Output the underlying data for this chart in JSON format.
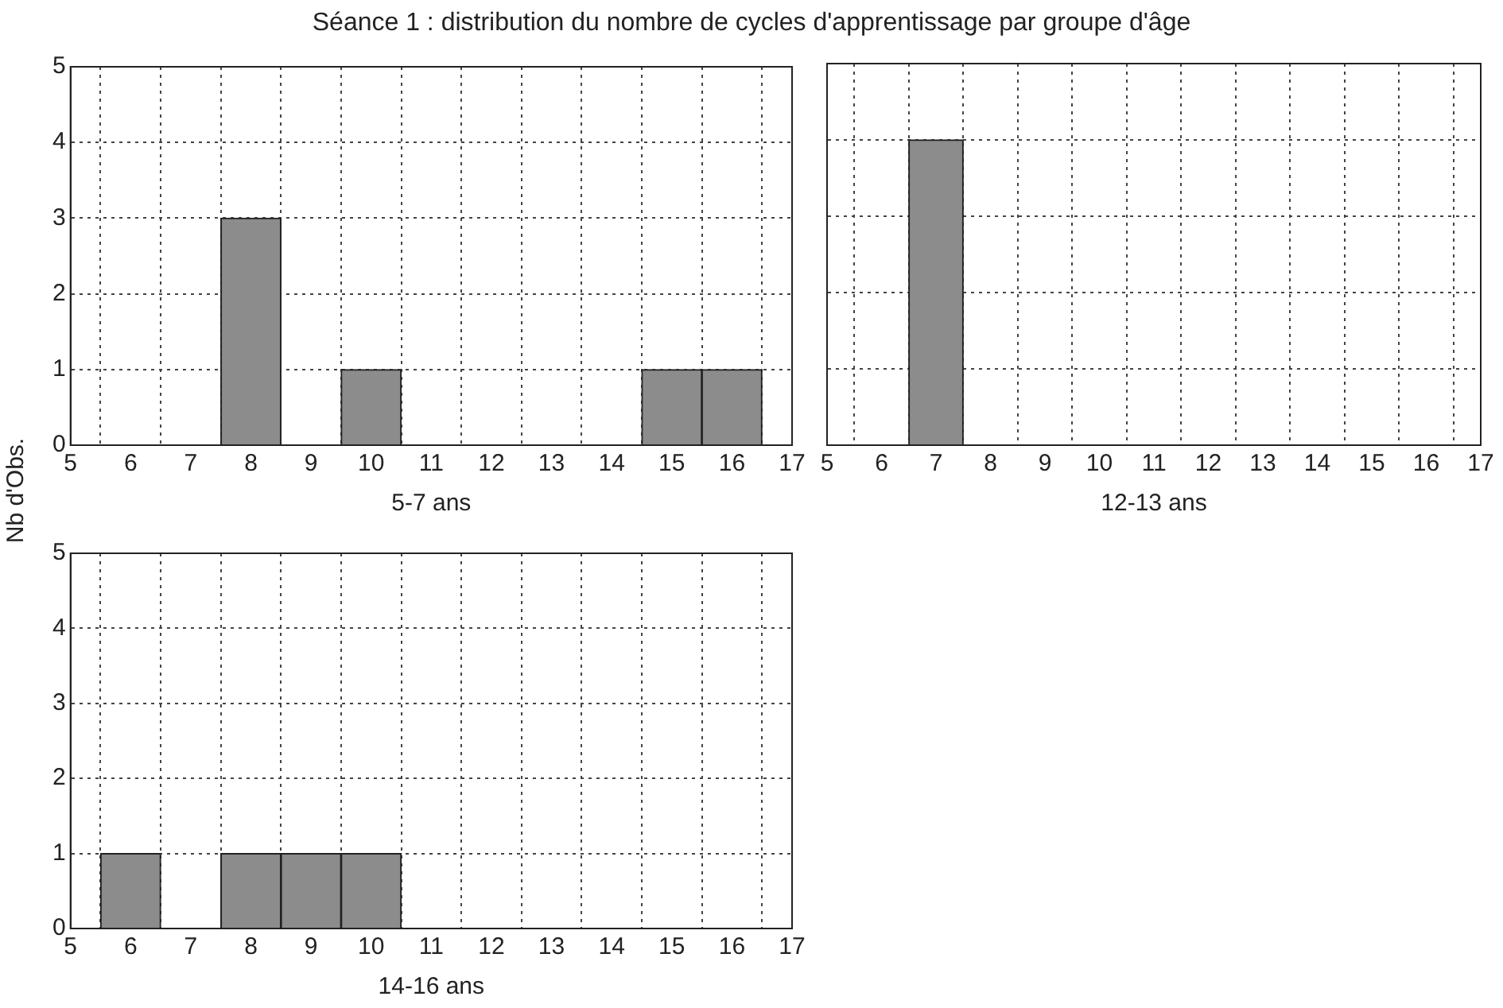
{
  "chart_data": [
    {
      "type": "histogram",
      "title": "Séance 1 : distribution du nombre de cycles d'apprentissage par groupe d'âge",
      "ylabel": "Nb d'Obs.",
      "xlabel": "5-7 ans",
      "bins": [
        5.5,
        6.5,
        7.5,
        8.5,
        9.5,
        10.5,
        11.5,
        12.5,
        13.5,
        14.5,
        15.5,
        16.5
      ],
      "values": [
        0,
        0,
        3,
        0,
        1,
        0,
        0,
        0,
        0,
        1,
        1
      ],
      "color": "#8c8c8c",
      "xlim": [
        5,
        17
      ],
      "xticks": [
        5,
        6,
        7,
        8,
        9,
        10,
        11,
        12,
        13,
        14,
        15,
        16,
        17
      ],
      "ylim": [
        0,
        5
      ],
      "yticks": [
        0,
        1,
        2,
        3,
        4,
        5
      ],
      "grid": true
    },
    {
      "type": "histogram",
      "xlabel": "12-13 ans",
      "bins": [
        5.5,
        6.5,
        7.5,
        8.5,
        9.5,
        10.5,
        11.5,
        12.5,
        13.5,
        14.5,
        15.5,
        16.5
      ],
      "values": [
        0,
        4,
        0,
        0,
        0,
        0,
        0,
        0,
        0,
        0,
        0
      ],
      "color": "#8c8c8c",
      "xlim": [
        5,
        17
      ],
      "xticks": [
        5,
        6,
        7,
        8,
        9,
        10,
        11,
        12,
        13,
        14,
        15,
        16,
        17
      ],
      "ylim": [
        0,
        5
      ],
      "yticks": [
        0,
        1,
        2,
        3,
        4,
        5
      ],
      "grid": true,
      "tick_labels": "x"
    },
    {
      "type": "histogram",
      "xlabel": "14-16 ans",
      "bins": [
        5.5,
        6.5,
        7.5,
        8.5,
        9.5,
        10.5,
        11.5,
        12.5,
        13.5,
        14.5,
        15.5,
        16.5
      ],
      "values": [
        1,
        0,
        1,
        1,
        1,
        0,
        0,
        0,
        0,
        0,
        0
      ],
      "color": "#8c8c8c",
      "xlim": [
        5,
        17
      ],
      "xticks": [
        5,
        6,
        7,
        8,
        9,
        10,
        11,
        12,
        13,
        14,
        15,
        16,
        17
      ],
      "ylim": [
        0,
        5
      ],
      "yticks": [
        0,
        1,
        2,
        3,
        4,
        5
      ],
      "grid": true
    }
  ]
}
